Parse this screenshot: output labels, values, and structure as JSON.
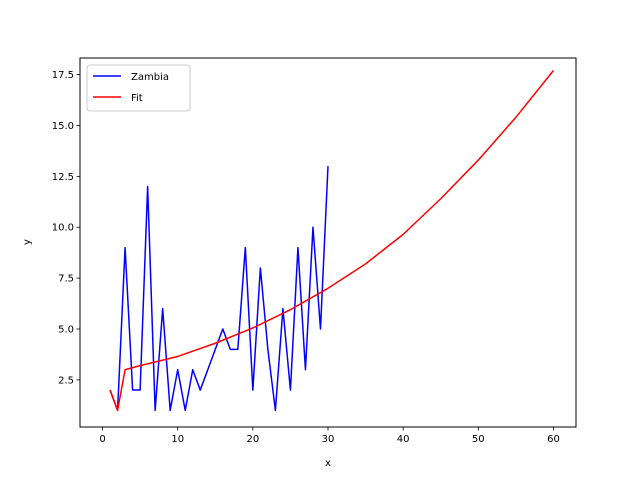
{
  "chart_data": {
    "type": "line",
    "title": "",
    "xlabel": "x",
    "ylabel": "y",
    "xlim": [
      -3,
      63
    ],
    "ylim": [
      0.185,
      18.315
    ],
    "xticks": [
      0,
      10,
      20,
      30,
      40,
      50,
      60
    ],
    "yticks": [
      2.5,
      5.0,
      7.5,
      10.0,
      12.5,
      15.0,
      17.5
    ],
    "ytick_labels": [
      "2.5",
      "5.0",
      "7.5",
      "10.0",
      "12.5",
      "15.0",
      "17.5"
    ],
    "grid": false,
    "legend_position": "top-left",
    "series": [
      {
        "name": "Zambia",
        "color": "#0000ff",
        "x": [
          1,
          2,
          3,
          4,
          5,
          6,
          7,
          8,
          9,
          10,
          11,
          12,
          13,
          14,
          15,
          16,
          17,
          18,
          19,
          20,
          21,
          22,
          23,
          24,
          25,
          26,
          27,
          28,
          29,
          30
        ],
        "y": [
          2,
          1,
          9,
          2,
          2,
          12,
          1,
          6,
          1,
          3,
          1,
          3,
          2,
          3,
          4,
          5,
          4,
          4,
          9,
          2,
          8,
          4,
          1,
          6,
          2,
          9,
          3,
          10,
          5,
          13
        ]
      },
      {
        "name": "Fit",
        "color": "#ff0000",
        "x": [
          1,
          2,
          3,
          5,
          10,
          15,
          20,
          25,
          30,
          35,
          40,
          45,
          50,
          55,
          60
        ],
        "y": [
          2,
          1,
          3.0,
          3.2,
          3.65,
          4.3,
          5.05,
          5.95,
          7.0,
          8.2,
          9.65,
          11.4,
          13.3,
          15.4,
          17.7
        ]
      }
    ]
  }
}
